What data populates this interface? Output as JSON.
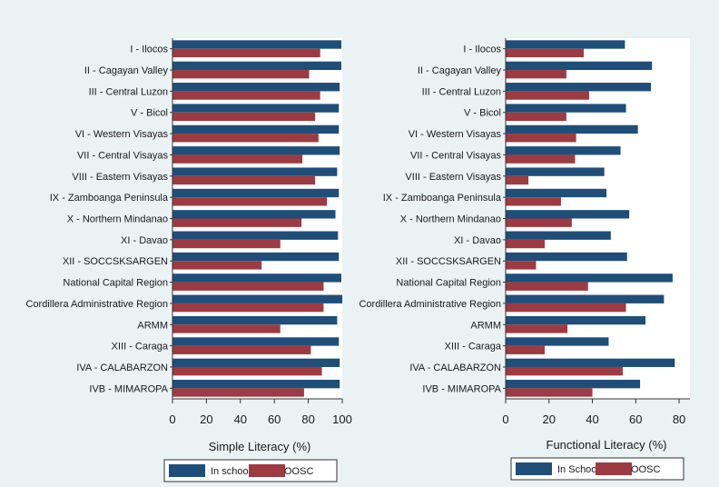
{
  "colors": {
    "in_school": "#1f4e79",
    "oosc": "#9e3a41",
    "background": "#eaf2f3",
    "plot": "#ffffff"
  },
  "chart_data": [
    {
      "type": "bar",
      "orientation": "horizontal",
      "categories": [
        "I - Ilocos",
        "II - Cagayan Valley",
        "III - Central Luzon",
        "V - Bicol",
        "VI  - Western Visayas",
        "VII - Central Visayas",
        "VIII - Eastern Visayas",
        "IX - Zamboanga Peninsula",
        "X - Northern Mindanao",
        "XI - Davao",
        "XII - SOCCSKSARGEN",
        "National Capital Region",
        "Cordillera Administrative Region",
        "ARMM",
        "XIII - Caraga",
        "IVA - CALABARZON",
        "IVB - MIMAROPA"
      ],
      "series": [
        {
          "name": "In school",
          "values": [
            99.5,
            99.5,
            98.5,
            98,
            98,
            98.5,
            97,
            98,
            96,
            97.5,
            98,
            99.5,
            100,
            97,
            98,
            98.5,
            98.5
          ]
        },
        {
          "name": "OOSC",
          "values": [
            87,
            80.5,
            87,
            84,
            86,
            76.5,
            84,
            91,
            76,
            63.5,
            52.5,
            89,
            89,
            63.5,
            81.5,
            88,
            77.5
          ]
        }
      ],
      "xlabel": "Simple Literacy (%)",
      "xlim": [
        0,
        100
      ],
      "xticks": [
        "0",
        "20",
        "40",
        "60",
        "80",
        "100"
      ],
      "legend": "bottom",
      "grid": false
    },
    {
      "type": "bar",
      "orientation": "horizontal",
      "categories": [
        "I - Ilocos",
        "II - Cagayan Valley",
        "III - Central Luzon",
        "V - Bicol",
        "VI  - Western Visayas",
        "VII - Central Visayas",
        "VIII - Eastern Visayas",
        "IX - Zamboanga Peninsula",
        "X - Northern Mindanao",
        "XI - Davao",
        "XII - SOCCSKSARGEN",
        "National Capital Region",
        "Cordillera Administrative Region",
        "ARMM",
        "XIII - Caraga",
        "IVA - CALABARZON",
        "IVB - MIMAROPA"
      ],
      "series": [
        {
          "name": "In School",
          "values": [
            55,
            67.5,
            67,
            55.5,
            61,
            53,
            45.5,
            46.5,
            57,
            48.5,
            56,
            77,
            73,
            64.5,
            47.5,
            78,
            62
          ]
        },
        {
          "name": "OOSC",
          "values": [
            36,
            28,
            38.5,
            28,
            32.5,
            32,
            10.5,
            25.5,
            30.5,
            18,
            14,
            38,
            55.5,
            28.5,
            18,
            54,
            40
          ]
        }
      ],
      "xlabel": "Functional Literacy (%)",
      "xlim": [
        0,
        85
      ],
      "xticks": [
        "0",
        "20",
        "40",
        "60",
        "80"
      ],
      "legend": "bottom",
      "grid": false
    }
  ]
}
